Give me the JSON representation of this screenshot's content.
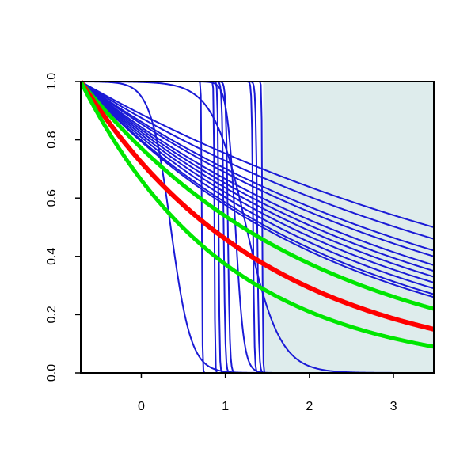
{
  "chart_data": {
    "type": "line",
    "xlim": [
      -0.72,
      3.48
    ],
    "ylim": [
      0.0,
      1.0
    ],
    "x_ticks": [
      "0",
      "1",
      "2",
      "3"
    ],
    "y_ticks": [
      "0.0",
      "0.2",
      "0.4",
      "0.6",
      "0.8",
      "1.0"
    ],
    "shaded_region": {
      "x_from": 1.45,
      "x_to": 3.48,
      "color": "#deecec"
    },
    "grid": false,
    "legend": "none",
    "colors": {
      "blue": "#1a1ad6",
      "red": "#ff0000",
      "green": "#00e600",
      "axis": "#000000"
    },
    "series": [
      {
        "color": "blue",
        "width": 2,
        "kind": "logistic",
        "x0": 0.72,
        "s": 0.004
      },
      {
        "color": "blue",
        "width": 2,
        "kind": "logistic",
        "x0": 0.87,
        "s": 0.004
      },
      {
        "color": "blue",
        "width": 2,
        "kind": "logistic",
        "x0": 0.92,
        "s": 0.006
      },
      {
        "color": "blue",
        "width": 2,
        "kind": "logistic",
        "x0": 0.98,
        "s": 0.01
      },
      {
        "color": "blue",
        "width": 2,
        "kind": "logistic",
        "x0": 1.03,
        "s": 0.012
      },
      {
        "color": "blue",
        "width": 2,
        "kind": "logistic",
        "x0": 1.33,
        "s": 0.008
      },
      {
        "color": "blue",
        "width": 2,
        "kind": "logistic",
        "x0": 1.38,
        "s": 0.01
      },
      {
        "color": "blue",
        "width": 2,
        "kind": "logistic",
        "x0": 1.44,
        "s": 0.004
      },
      {
        "color": "blue",
        "width": 2,
        "kind": "logistic",
        "x0": 0.35,
        "s": 0.12
      },
      {
        "color": "blue",
        "width": 2,
        "kind": "logistic",
        "x0": 1.12,
        "s": 0.05
      },
      {
        "color": "blue",
        "width": 2,
        "kind": "logistic",
        "x0": 1.25,
        "s": 0.2
      },
      {
        "color": "blue",
        "width": 2,
        "kind": "exp",
        "y_end": 0.5
      },
      {
        "color": "blue",
        "width": 2,
        "kind": "exp",
        "y_end": 0.46
      },
      {
        "color": "blue",
        "width": 2,
        "kind": "exp",
        "y_end": 0.42
      },
      {
        "color": "blue",
        "width": 2,
        "kind": "exp",
        "y_end": 0.4
      },
      {
        "color": "blue",
        "width": 2,
        "kind": "exp",
        "y_end": 0.37
      },
      {
        "color": "blue",
        "width": 2,
        "kind": "exp",
        "y_end": 0.35
      },
      {
        "color": "blue",
        "width": 2,
        "kind": "exp",
        "y_end": 0.33
      },
      {
        "color": "blue",
        "width": 2,
        "kind": "exp",
        "y_end": 0.31
      },
      {
        "color": "blue",
        "width": 2,
        "kind": "exp",
        "y_end": 0.29
      },
      {
        "color": "blue",
        "width": 2,
        "kind": "exp",
        "y_end": 0.27
      },
      {
        "color": "blue",
        "width": 2,
        "kind": "exp",
        "y_end": 0.26
      },
      {
        "color": "green",
        "width": 5,
        "kind": "exp",
        "y_end": 0.22
      },
      {
        "color": "red",
        "width": 6,
        "kind": "exp",
        "y_end": 0.15
      },
      {
        "color": "green",
        "width": 5,
        "kind": "exp",
        "y_end": 0.09
      }
    ]
  }
}
